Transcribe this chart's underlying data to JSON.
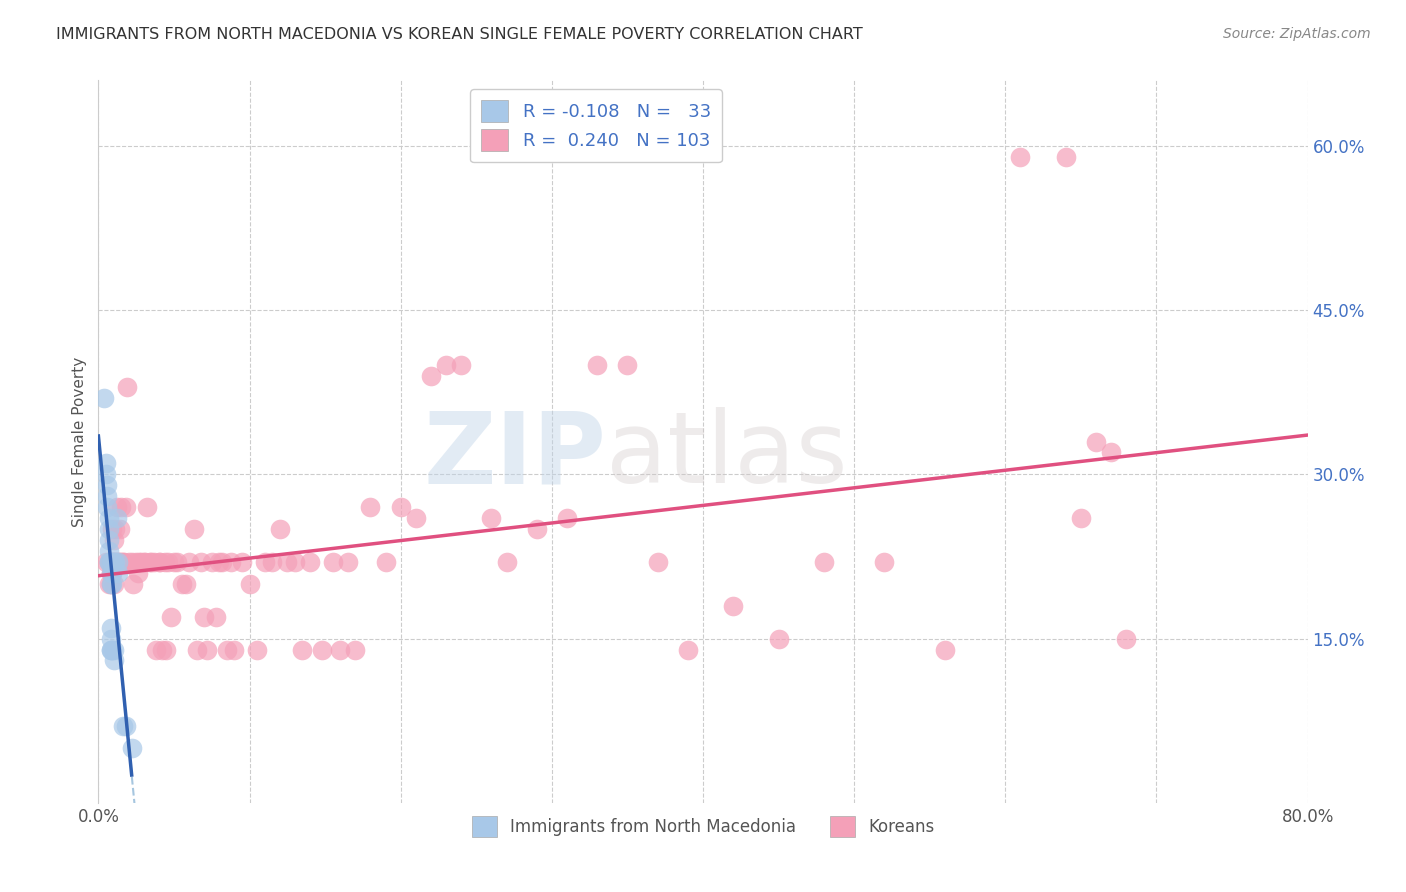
{
  "title": "IMMIGRANTS FROM NORTH MACEDONIA VS KOREAN SINGLE FEMALE POVERTY CORRELATION CHART",
  "source": "Source: ZipAtlas.com",
  "ylabel": "Single Female Poverty",
  "ytick_labels": [
    "15.0%",
    "30.0%",
    "45.0%",
    "60.0%"
  ],
  "ytick_values": [
    0.15,
    0.3,
    0.45,
    0.6
  ],
  "xlim": [
    0.0,
    0.8
  ],
  "ylim": [
    -0.02,
    0.68
  ],
  "plot_ylim": [
    0.0,
    0.66
  ],
  "legend_label1": "Immigrants from North Macedonia",
  "legend_label2": "Koreans",
  "blue_marker_color": "#a8c8e8",
  "pink_color": "#f4a0b8",
  "pink_line_color": "#e05080",
  "blue_line_color": "#3060b0",
  "blue_dash_color": "#90b8d8",
  "watermark_zip": "ZIP",
  "watermark_atlas": "atlas",
  "blue_R": -0.108,
  "blue_N": 33,
  "pink_R": 0.24,
  "pink_N": 103,
  "blue_x": [
    0.004,
    0.005,
    0.005,
    0.006,
    0.006,
    0.006,
    0.007,
    0.007,
    0.007,
    0.007,
    0.007,
    0.007,
    0.008,
    0.008,
    0.008,
    0.008,
    0.008,
    0.008,
    0.008,
    0.009,
    0.009,
    0.009,
    0.009,
    0.01,
    0.01,
    0.01,
    0.011,
    0.012,
    0.013,
    0.013,
    0.016,
    0.018,
    0.022
  ],
  "blue_y": [
    0.37,
    0.3,
    0.31,
    0.27,
    0.28,
    0.29,
    0.24,
    0.25,
    0.26,
    0.22,
    0.22,
    0.23,
    0.2,
    0.21,
    0.22,
    0.14,
    0.15,
    0.16,
    0.14,
    0.2,
    0.21,
    0.22,
    0.14,
    0.22,
    0.14,
    0.13,
    0.22,
    0.26,
    0.22,
    0.21,
    0.07,
    0.07,
    0.05
  ],
  "pink_x": [
    0.005,
    0.007,
    0.007,
    0.008,
    0.008,
    0.009,
    0.009,
    0.009,
    0.01,
    0.01,
    0.01,
    0.011,
    0.011,
    0.012,
    0.012,
    0.013,
    0.014,
    0.014,
    0.015,
    0.015,
    0.016,
    0.017,
    0.018,
    0.019,
    0.02,
    0.022,
    0.023,
    0.025,
    0.026,
    0.027,
    0.028,
    0.03,
    0.031,
    0.032,
    0.034,
    0.035,
    0.037,
    0.038,
    0.04,
    0.041,
    0.042,
    0.044,
    0.045,
    0.046,
    0.048,
    0.05,
    0.052,
    0.055,
    0.058,
    0.06,
    0.063,
    0.065,
    0.068,
    0.07,
    0.072,
    0.075,
    0.078,
    0.08,
    0.082,
    0.085,
    0.088,
    0.09,
    0.095,
    0.1,
    0.105,
    0.11,
    0.115,
    0.12,
    0.125,
    0.13,
    0.135,
    0.14,
    0.148,
    0.155,
    0.16,
    0.165,
    0.17,
    0.18,
    0.19,
    0.2,
    0.21,
    0.22,
    0.23,
    0.24,
    0.26,
    0.27,
    0.29,
    0.31,
    0.33,
    0.35,
    0.37,
    0.39,
    0.42,
    0.45,
    0.48,
    0.52,
    0.56,
    0.61,
    0.64,
    0.65,
    0.66,
    0.67,
    0.68
  ],
  "pink_y": [
    0.22,
    0.2,
    0.22,
    0.2,
    0.21,
    0.21,
    0.22,
    0.25,
    0.2,
    0.22,
    0.24,
    0.22,
    0.25,
    0.27,
    0.22,
    0.22,
    0.25,
    0.22,
    0.27,
    0.22,
    0.22,
    0.22,
    0.27,
    0.38,
    0.22,
    0.22,
    0.2,
    0.22,
    0.21,
    0.22,
    0.22,
    0.22,
    0.22,
    0.27,
    0.22,
    0.22,
    0.22,
    0.14,
    0.22,
    0.22,
    0.14,
    0.22,
    0.14,
    0.22,
    0.17,
    0.22,
    0.22,
    0.2,
    0.2,
    0.22,
    0.25,
    0.14,
    0.22,
    0.17,
    0.14,
    0.22,
    0.17,
    0.22,
    0.22,
    0.14,
    0.22,
    0.14,
    0.22,
    0.2,
    0.14,
    0.22,
    0.22,
    0.25,
    0.22,
    0.22,
    0.14,
    0.22,
    0.14,
    0.22,
    0.14,
    0.22,
    0.14,
    0.27,
    0.22,
    0.27,
    0.26,
    0.39,
    0.4,
    0.4,
    0.26,
    0.22,
    0.25,
    0.26,
    0.4,
    0.4,
    0.22,
    0.14,
    0.18,
    0.15,
    0.22,
    0.22,
    0.14,
    0.59,
    0.59,
    0.26,
    0.33,
    0.32,
    0.15
  ]
}
